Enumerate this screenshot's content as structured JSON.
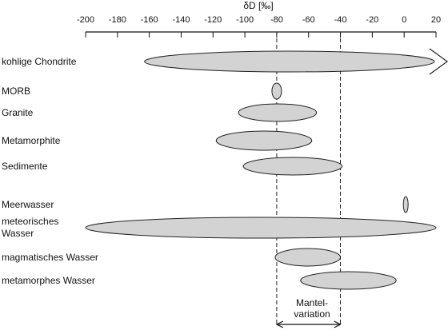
{
  "axis": {
    "title": "δD [‰]",
    "min": -200,
    "max": 20,
    "ticks": [
      -200,
      -180,
      -160,
      -140,
      -120,
      -100,
      -80,
      -60,
      -40,
      -20,
      0,
      20
    ]
  },
  "reservoirs": [
    {
      "label": "kohlige Chondrite",
      "from": -160,
      "to": 20,
      "arrow": true
    },
    {
      "label": "MORB",
      "from": -83,
      "to": -77
    },
    {
      "label": "Granite",
      "from": -104,
      "to": -55
    },
    {
      "label": "Metamorphite",
      "from": -118,
      "to": -58
    },
    {
      "label": "Sedimente",
      "from": -101,
      "to": -39
    },
    {
      "label": "Meerwasser",
      "from": 0,
      "to": 2
    },
    {
      "label": "meteorisches\nWasser",
      "from": -200,
      "to": 20
    },
    {
      "label": "magmatisches Wasser",
      "from": -81,
      "to": -40
    },
    {
      "label": "metamorphes Wasser",
      "from": -65,
      "to": -5
    }
  ],
  "mantle_variation": {
    "label_line1": "Mantel-",
    "label_line2": "variation",
    "from": -80,
    "to": -40
  },
  "colors": {
    "fill": "#d3d3d3",
    "stroke": "#222222",
    "text": "#111111"
  }
}
